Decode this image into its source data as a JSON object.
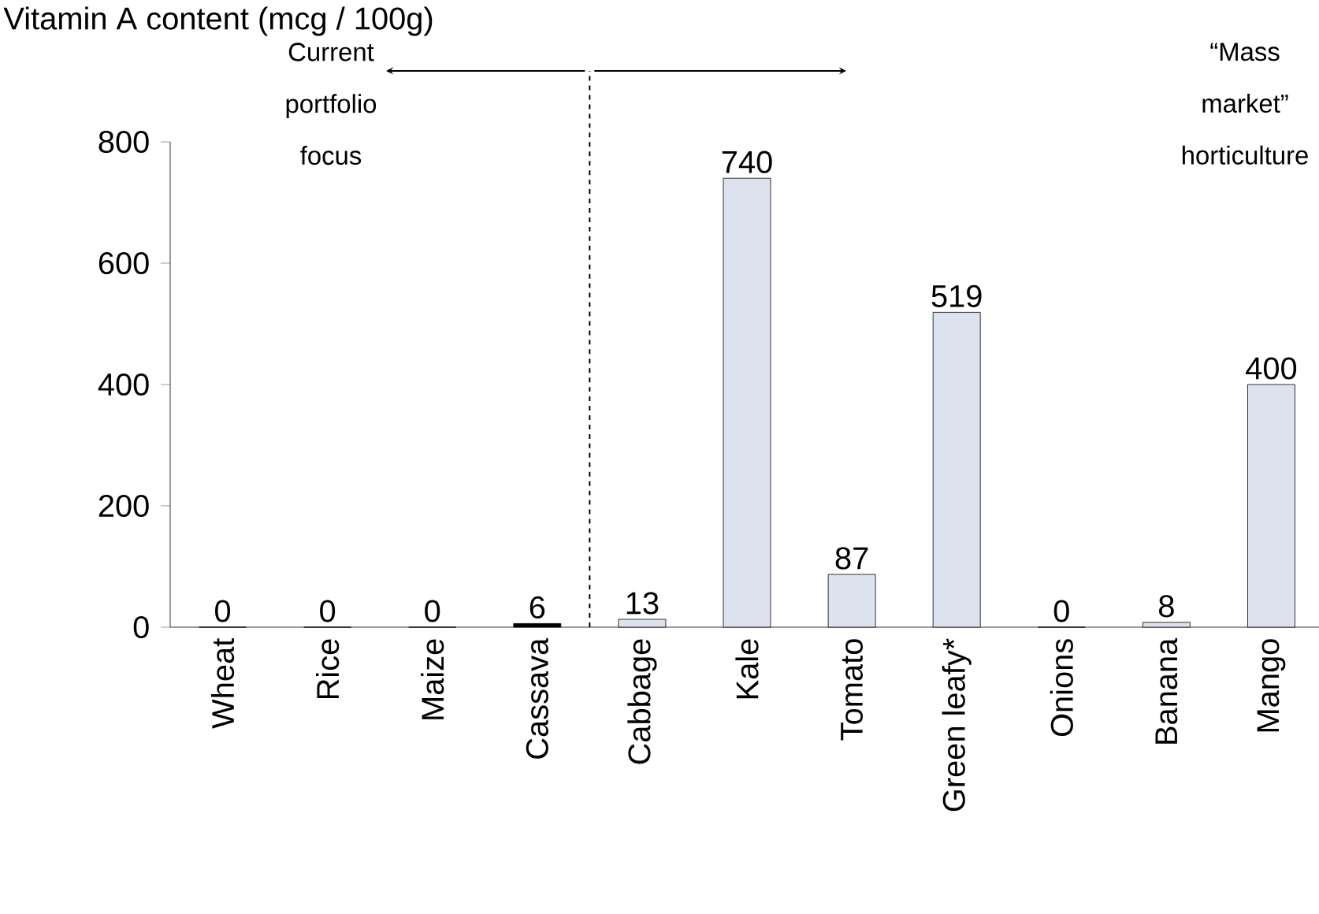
{
  "chart_data": {
    "type": "bar",
    "ylabel": "Vitamin A content (mcg / 100g)",
    "categories": [
      "Wheat",
      "Rice",
      "Maize",
      "Cassava",
      "Cabbage",
      "Kale",
      "Tomato",
      "Green leafy*",
      "Onions",
      "Banana",
      "Mango"
    ],
    "values": [
      0,
      0,
      0,
      6,
      13,
      740,
      87,
      519,
      0,
      8,
      400
    ],
    "colors": [
      "#000000",
      "#000000",
      "#000000",
      "#000000",
      "#dce3ef",
      "#dce3ef",
      "#dce3ef",
      "#dce3ef",
      "#dce3ef",
      "#dce3ef",
      "#dce3ef"
    ],
    "data_labels": true,
    "ylim": [
      0,
      800
    ],
    "yticks": [
      0,
      200,
      400,
      600,
      800
    ],
    "grid": false,
    "annotations": [
      "Current portfolio focus",
      "“Mass market” horticulture"
    ]
  }
}
